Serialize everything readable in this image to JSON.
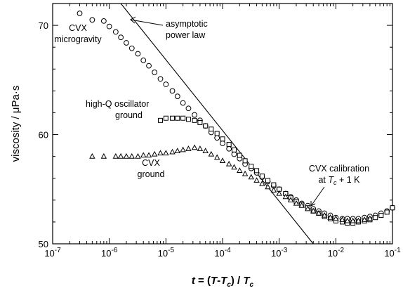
{
  "chart_data": {
    "type": "scatter",
    "title": "",
    "xlabel": "t = (T-Tc) / Tc",
    "ylabel": "viscosity / μPa·s",
    "x_scale": "log",
    "xlim": [
      1e-07,
      0.1
    ],
    "ylim": [
      50,
      72
    ],
    "grid": false,
    "x_ticks": [
      {
        "value": 1e-07,
        "base": "10",
        "exp": "-7"
      },
      {
        "value": 1e-06,
        "base": "10",
        "exp": "-6"
      },
      {
        "value": 1e-05,
        "base": "10",
        "exp": "-5"
      },
      {
        "value": 0.0001,
        "base": "10",
        "exp": "-4"
      },
      {
        "value": 0.001,
        "base": "10",
        "exp": "-3"
      },
      {
        "value": 0.01,
        "base": "10",
        "exp": "-2"
      },
      {
        "value": 0.1,
        "base": "10",
        "exp": "-1"
      }
    ],
    "y_ticks": [
      50,
      60,
      70
    ],
    "series": [
      {
        "label": "CVX microgravity",
        "marker": "circle",
        "x": [
          3e-07,
          5e-07,
          8e-07,
          1e-06,
          1.3e-06,
          1.6e-06,
          2e-06,
          2.5e-06,
          3.2e-06,
          4e-06,
          5e-06,
          6.3e-06,
          8e-06,
          1e-05,
          1.3e-05,
          1.6e-05,
          2e-05,
          2.5e-05,
          3.2e-05,
          4e-05,
          5e-05,
          6.3e-05,
          8e-05,
          0.0001,
          0.00013,
          0.00016,
          0.0002,
          0.00025,
          0.00032,
          0.0004,
          0.0005,
          0.00063,
          0.0008,
          0.001,
          0.0013,
          0.0016,
          0.002,
          0.0025,
          0.0032,
          0.004,
          0.005,
          0.0063,
          0.008,
          0.01,
          0.013,
          0.016,
          0.02,
          0.025,
          0.032,
          0.04,
          0.05,
          0.063,
          0.08,
          0.1
        ],
        "y": [
          71.1,
          70.5,
          70.4,
          69.9,
          69.4,
          68.9,
          68.4,
          67.9,
          67.4,
          66.8,
          66.3,
          65.7,
          65.1,
          64.6,
          64.0,
          63.5,
          62.9,
          62.4,
          61.8,
          61.3,
          60.8,
          60.2,
          59.7,
          59.2,
          58.7,
          58.2,
          57.8,
          57.3,
          56.9,
          56.5,
          56.1,
          55.7,
          55.3,
          55.0,
          54.6,
          54.3,
          54.0,
          53.7,
          53.5,
          53.2,
          53.0,
          52.8,
          52.6,
          52.4,
          52.3,
          52.3,
          52.3,
          52.3,
          52.4,
          52.5,
          52.6,
          52.8,
          53.0,
          53.3
        ]
      },
      {
        "label": "high-Q oscillator ground",
        "marker": "square",
        "x": [
          8e-06,
          1e-05,
          1.3e-05,
          1.6e-05,
          2e-05,
          2.5e-05,
          3.2e-05,
          4e-05,
          5e-05,
          6.3e-05,
          8e-05,
          0.0001,
          0.00013,
          0.00016,
          0.0002,
          0.00025,
          0.00032,
          0.0004,
          0.0005,
          0.00063,
          0.0008,
          0.001,
          0.0013,
          0.0016,
          0.002,
          0.0025,
          0.0032,
          0.004,
          0.005,
          0.0063,
          0.008,
          0.01,
          0.013,
          0.016,
          0.02,
          0.025,
          0.032,
          0.04,
          0.05,
          0.063,
          0.08,
          0.1
        ],
        "y": [
          61.3,
          61.5,
          61.5,
          61.5,
          61.5,
          61.4,
          61.3,
          61.1,
          60.8,
          60.5,
          60.1,
          59.6,
          59.1,
          58.6,
          58.1,
          57.6,
          57.1,
          56.7,
          56.2,
          55.8,
          55.4,
          55.0,
          54.6,
          54.2,
          53.9,
          53.6,
          53.3,
          53.0,
          52.8,
          52.5,
          52.3,
          52.1,
          52.0,
          51.9,
          51.9,
          52.0,
          52.1,
          52.2,
          52.4,
          52.6,
          52.9,
          53.3
        ]
      },
      {
        "label": "CVX ground",
        "marker": "triangle",
        "x": [
          5e-07,
          8e-07,
          1.3e-06,
          1.6e-06,
          2e-06,
          2.5e-06,
          3.2e-06,
          4e-06,
          5e-06,
          6.3e-06,
          8e-06,
          1e-05,
          1.3e-05,
          1.6e-05,
          2e-05,
          2.5e-05,
          3.2e-05,
          4e-05,
          5e-05,
          6.3e-05,
          8e-05,
          0.0001,
          0.00013,
          0.00016,
          0.0002,
          0.00025,
          0.00032,
          0.0004,
          0.0005,
          0.00063,
          0.0008,
          0.001,
          0.0013,
          0.0016,
          0.002,
          0.0025,
          0.0032,
          0.004,
          0.005,
          0.0063,
          0.008,
          0.01,
          0.013,
          0.016,
          0.02,
          0.025,
          0.032,
          0.04
        ],
        "y": [
          58.0,
          58.0,
          58.0,
          58.0,
          58.0,
          58.0,
          58.0,
          58.1,
          58.1,
          58.2,
          58.3,
          58.3,
          58.4,
          58.5,
          58.6,
          58.7,
          58.8,
          58.7,
          58.5,
          58.2,
          57.9,
          57.6,
          57.3,
          57.0,
          56.7,
          56.4,
          56.1,
          55.8,
          55.5,
          55.2,
          54.9,
          54.6,
          54.3,
          54.0,
          53.7,
          53.5,
          53.2,
          53.0,
          52.8,
          52.6,
          52.4,
          52.3,
          52.2,
          52.1,
          52.1,
          52.1,
          52.2,
          52.3
        ]
      }
    ],
    "power_law_line": {
      "label": "asymptotic power law",
      "x": [
        1.6e-06,
        0.004
      ],
      "y": [
        72,
        50
      ]
    },
    "annotations": [
      {
        "name": "annotation-cvx-microgravity",
        "lines": [
          "CVX",
          "microgravity"
        ]
      },
      {
        "name": "annotation-asymptotic-power-law",
        "lines": [
          "asymptotic",
          "power law"
        ]
      },
      {
        "name": "annotation-high-q-oscillator",
        "lines": [
          "high-Q oscillator",
          "ground"
        ]
      },
      {
        "name": "annotation-cvx-ground",
        "lines": [
          "CVX",
          "ground"
        ]
      },
      {
        "name": "annotation-cvx-calibration",
        "lines": [
          "CVX calibration",
          "at Tc + 1 K"
        ]
      }
    ]
  }
}
